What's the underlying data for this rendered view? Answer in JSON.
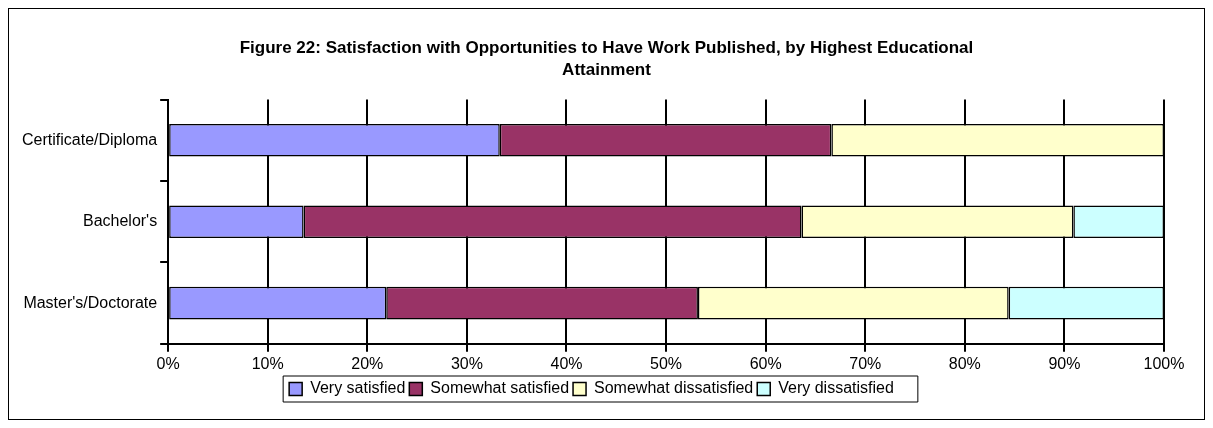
{
  "chart_data": {
    "type": "bar",
    "orientation": "horizontal",
    "stacked": true,
    "title": "Figure 22:  Satisfaction with Opportunities to Have Work Published, by Highest Educational Attainment",
    "categories": [
      "Certificate/Diploma",
      "Bachelor's",
      "Master's/Doctorate"
    ],
    "series": [
      {
        "name": "Very satisfied",
        "color": "#9999ff",
        "values": [
          33.3,
          13.6,
          21.9
        ]
      },
      {
        "name": "Somewhat satisfied",
        "color": "#993366",
        "values": [
          33.3,
          50.0,
          31.3
        ]
      },
      {
        "name": "Somewhat dissatisfied",
        "color": "#ffffcc",
        "values": [
          33.4,
          27.3,
          31.2
        ]
      },
      {
        "name": "Very dissatisfied",
        "color": "#ccffff",
        "values": [
          0,
          9.1,
          15.6
        ]
      }
    ],
    "xlim": [
      0,
      100
    ],
    "xticks": [
      {
        "value": 0,
        "label": "0%"
      },
      {
        "value": 10,
        "label": "10%"
      },
      {
        "value": 20,
        "label": "20%"
      },
      {
        "value": 30,
        "label": "30%"
      },
      {
        "value": 40,
        "label": "40%"
      },
      {
        "value": 50,
        "label": "50%"
      },
      {
        "value": 60,
        "label": "60%"
      },
      {
        "value": 70,
        "label": "70%"
      },
      {
        "value": 80,
        "label": "80%"
      },
      {
        "value": 90,
        "label": "90%"
      },
      {
        "value": 100,
        "label": "100%"
      }
    ],
    "grid": "x",
    "legend": "bottom"
  }
}
